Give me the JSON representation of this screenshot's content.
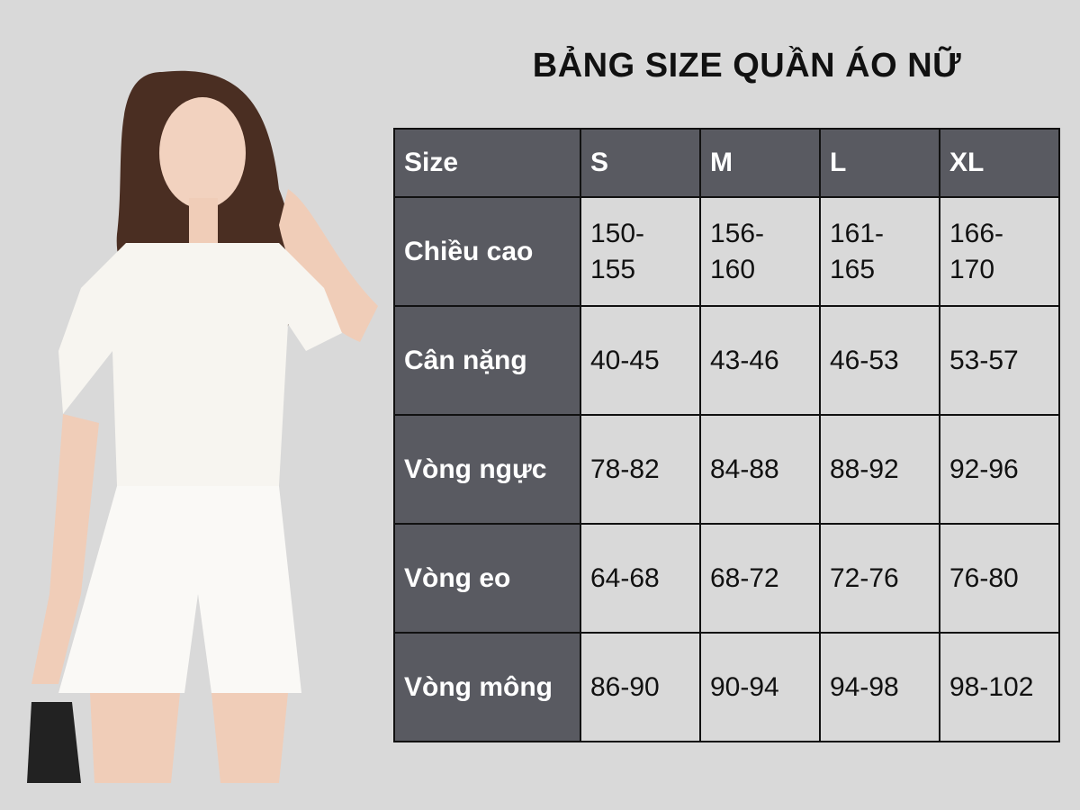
{
  "title": "BẢNG SIZE QUẦN ÁO NỮ",
  "table": {
    "headers": [
      "Size",
      "S",
      "M",
      "L",
      "XL"
    ],
    "rows": [
      {
        "label": "Chiều cao",
        "values": [
          "150-155",
          "156-160",
          "161-165",
          "166-170"
        ]
      },
      {
        "label": "Cân nặng",
        "values": [
          "40-45",
          "43-46",
          "46-53",
          "53-57"
        ]
      },
      {
        "label": "Vòng ngực",
        "values": [
          "78-82",
          "84-88",
          "88-92",
          "92-96"
        ]
      },
      {
        "label": "Vòng eo",
        "values": [
          "64-68",
          "68-72",
          "72-76",
          "76-80"
        ]
      },
      {
        "label": "Vòng mông",
        "values": [
          "86-90",
          "90-94",
          "94-98",
          "98-102"
        ]
      }
    ]
  },
  "colors": {
    "background": "#d9d9d9",
    "header": "#595a61",
    "border": "#111111"
  }
}
